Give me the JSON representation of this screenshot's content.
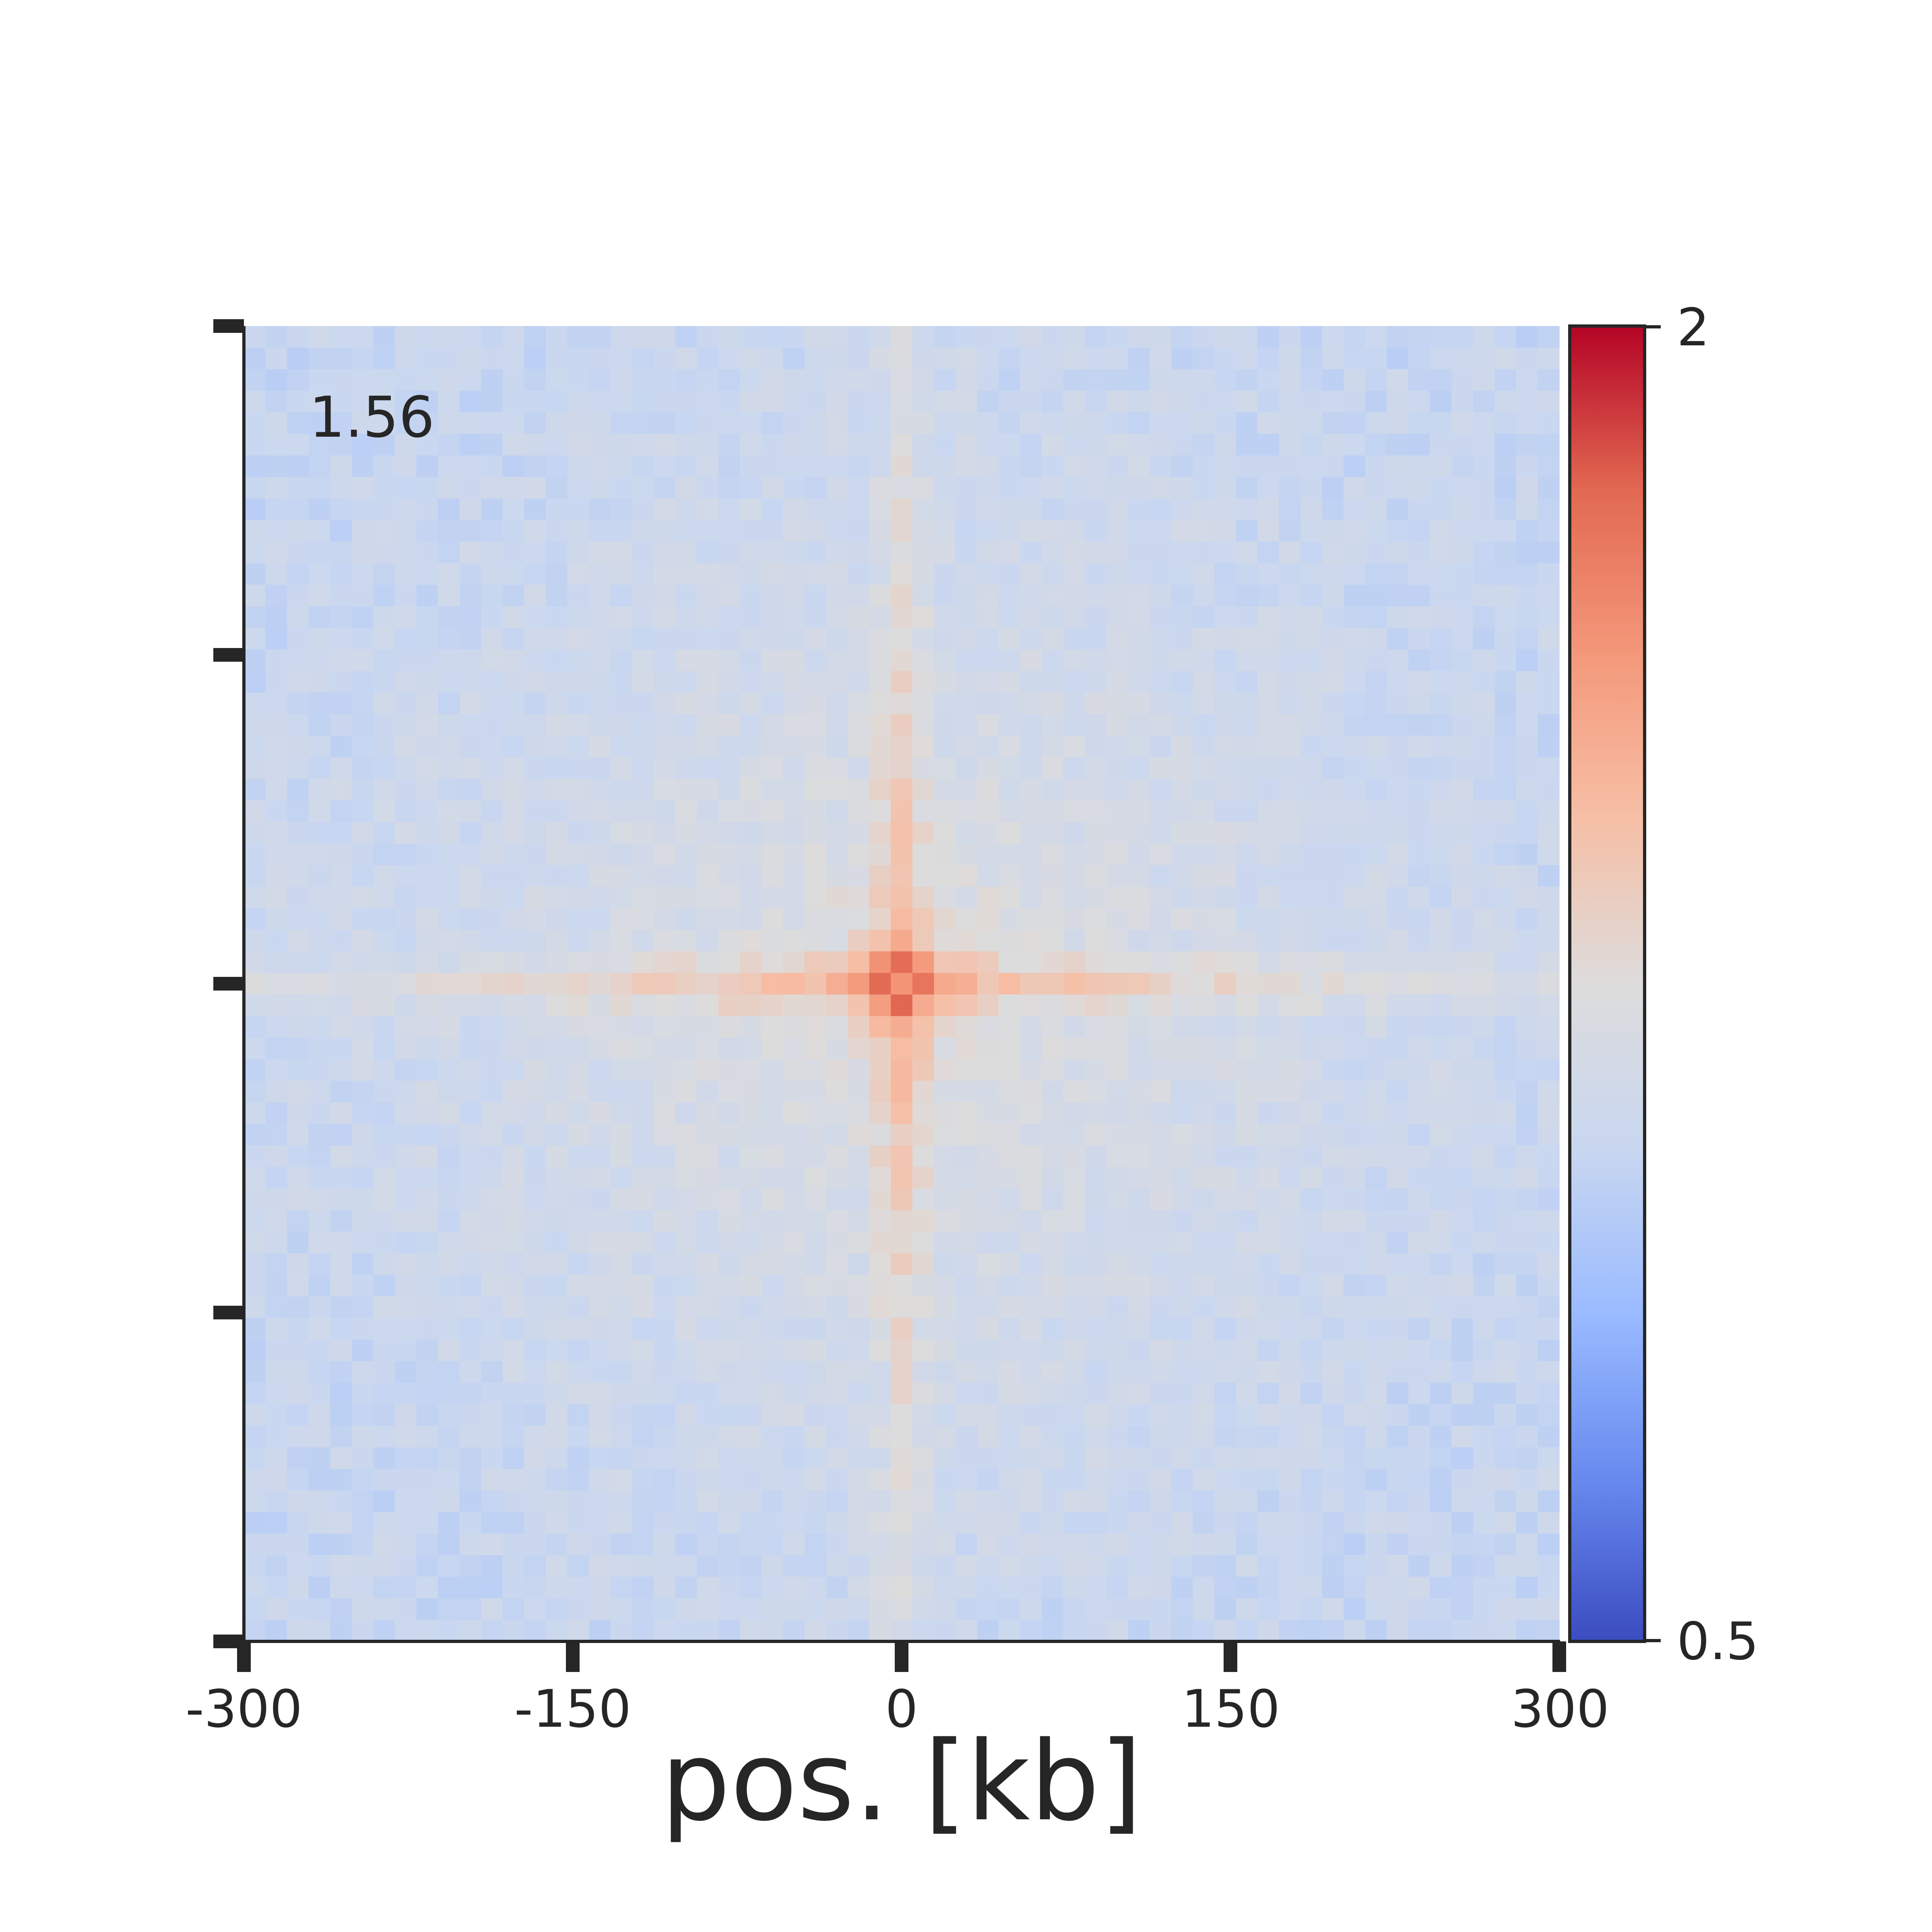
{
  "chart_data": {
    "type": "heatmap",
    "title": "",
    "xlabel": "pos. [kb]",
    "ylabel": "",
    "xlim": [
      -300,
      300
    ],
    "x_ticks": [
      "-300",
      "-150",
      "0",
      "150",
      "300"
    ],
    "y_tick_count": 5,
    "grid": false,
    "n_bins": 61,
    "center_value": 1.56,
    "corner_annotation": "1.56",
    "colormap": "coolwarm",
    "color_min": 0.5,
    "color_max": 2,
    "colorbar_ticks": [
      "2",
      "0.5"
    ],
    "colorbar_stops": [
      "#3b4cc0",
      "#688aef",
      "#9abbff",
      "#c9d7f0",
      "#dddcdc",
      "#f6bfa6",
      "#f4987a",
      "#e26952",
      "#b40426"
    ],
    "pattern_description_values": {
      "background_level": 1.1,
      "stripe_level": 1.32,
      "peak_level": 1.56
    }
  }
}
